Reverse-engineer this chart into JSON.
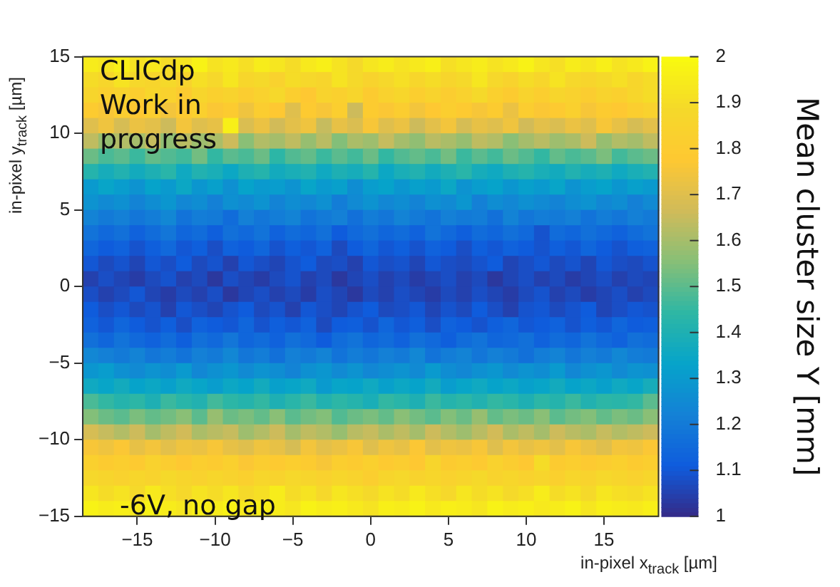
{
  "chart_data": {
    "type": "heatmap",
    "xlabel": "in-pixel x$_{track}$ [µm]",
    "ylabel": "in-pixel y$_{track}$ [µm]",
    "clabel": "Mean cluster size Y [mm]",
    "annotations": [
      "CLICdp",
      "Work in progress",
      "-6V, no gap"
    ],
    "xlim": [
      -18.5,
      18.5
    ],
    "ylim": [
      -15,
      15
    ],
    "xticks": [
      -15,
      -10,
      -5,
      0,
      5,
      10,
      15
    ],
    "yticks": [
      -15,
      -10,
      -5,
      0,
      5,
      10,
      15
    ],
    "clim": [
      1,
      2
    ],
    "cticks": [
      1,
      1.1,
      1.2,
      1.3,
      1.4,
      1.5,
      1.6,
      1.7,
      1.8,
      1.9,
      2
    ],
    "cells": [
      [
        1.95,
        1.93,
        1.96,
        1.92,
        1.94,
        1.9,
        1.93,
        1.97,
        1.92,
        1.94,
        1.91,
        1.95,
        1.93,
        1.9,
        1.94,
        1.96,
        1.92,
        1.89,
        1.93,
        1.95,
        1.92,
        1.94,
        1.96,
        1.91,
        1.93,
        1.95,
        1.92,
        1.94,
        1.97,
        1.93,
        1.91,
        1.95,
        1.93,
        1.96,
        1.92,
        1.94,
        1.97
      ],
      [
        1.9,
        1.87,
        1.92,
        1.88,
        1.86,
        1.89,
        1.85,
        1.91,
        1.88,
        1.93,
        1.87,
        1.89,
        1.84,
        1.9,
        1.88,
        1.86,
        1.92,
        1.89,
        1.85,
        1.88,
        1.91,
        1.87,
        1.9,
        1.86,
        1.89,
        1.93,
        1.88,
        1.85,
        1.9,
        1.87,
        1.92,
        1.88,
        1.86,
        1.89,
        1.91,
        1.87,
        1.9
      ],
      [
        1.86,
        1.83,
        1.85,
        1.82,
        1.87,
        1.84,
        1.8,
        1.86,
        1.83,
        1.85,
        1.81,
        1.84,
        1.88,
        1.82,
        1.78,
        1.85,
        1.83,
        1.86,
        1.8,
        1.84,
        1.87,
        1.82,
        1.85,
        1.81,
        1.84,
        1.89,
        1.83,
        1.8,
        1.85,
        1.82,
        1.86,
        1.84,
        1.81,
        1.85,
        1.83,
        1.87,
        1.9
      ],
      [
        1.8,
        1.76,
        1.81,
        1.78,
        1.82,
        1.75,
        1.79,
        1.83,
        1.77,
        1.8,
        1.74,
        1.81,
        1.78,
        1.7,
        1.79,
        1.76,
        1.82,
        1.66,
        1.8,
        1.77,
        1.81,
        1.75,
        1.78,
        1.82,
        1.79,
        1.76,
        1.8,
        1.73,
        1.81,
        1.77,
        1.79,
        1.83,
        1.76,
        1.8,
        1.78,
        1.82,
        1.84
      ],
      [
        1.7,
        1.74,
        1.68,
        1.73,
        1.71,
        1.66,
        1.75,
        1.7,
        1.72,
        1.96,
        1.69,
        1.73,
        1.67,
        1.71,
        1.74,
        1.65,
        1.72,
        1.69,
        1.76,
        1.7,
        1.73,
        1.66,
        1.71,
        1.75,
        1.68,
        1.72,
        1.7,
        1.74,
        1.67,
        1.71,
        1.69,
        1.73,
        1.7,
        1.76,
        1.72,
        1.68,
        1.71
      ],
      [
        1.64,
        1.58,
        1.62,
        1.6,
        1.65,
        1.57,
        1.63,
        1.59,
        1.61,
        1.66,
        1.56,
        1.62,
        1.6,
        1.64,
        1.58,
        1.63,
        1.55,
        1.61,
        1.59,
        1.65,
        1.6,
        1.57,
        1.63,
        1.61,
        1.58,
        1.64,
        1.62,
        1.56,
        1.6,
        1.63,
        1.59,
        1.61,
        1.66,
        1.58,
        1.62,
        1.6,
        1.64
      ],
      [
        1.52,
        1.48,
        1.5,
        1.46,
        1.51,
        1.49,
        1.47,
        1.53,
        1.45,
        1.5,
        1.48,
        1.52,
        1.44,
        1.49,
        1.51,
        1.46,
        1.5,
        1.47,
        1.52,
        1.45,
        1.49,
        1.51,
        1.48,
        1.53,
        1.46,
        1.5,
        1.47,
        1.52,
        1.49,
        1.45,
        1.51,
        1.48,
        1.5,
        1.54,
        1.47,
        1.5,
        1.52
      ],
      [
        1.42,
        1.38,
        1.41,
        1.37,
        1.4,
        1.43,
        1.36,
        1.41,
        1.39,
        1.35,
        1.4,
        1.42,
        1.37,
        1.39,
        1.41,
        1.36,
        1.4,
        1.38,
        1.42,
        1.35,
        1.39,
        1.41,
        1.37,
        1.4,
        1.43,
        1.38,
        1.36,
        1.4,
        1.42,
        1.39,
        1.37,
        1.41,
        1.38,
        1.4,
        1.36,
        1.39,
        1.41
      ],
      [
        1.3,
        1.34,
        1.31,
        1.28,
        1.33,
        1.3,
        1.35,
        1.29,
        1.32,
        1.27,
        1.33,
        1.3,
        1.31,
        1.28,
        1.34,
        1.3,
        1.32,
        1.26,
        1.31,
        1.33,
        1.29,
        1.32,
        1.3,
        1.35,
        1.28,
        1.31,
        1.33,
        1.29,
        1.32,
        1.3,
        1.34,
        1.28,
        1.31,
        1.33,
        1.29,
        1.32,
        1.3
      ],
      [
        1.28,
        1.25,
        1.27,
        1.23,
        1.26,
        1.29,
        1.24,
        1.26,
        1.22,
        1.27,
        1.25,
        1.28,
        1.23,
        1.26,
        1.24,
        1.27,
        1.21,
        1.25,
        1.28,
        1.24,
        1.26,
        1.23,
        1.27,
        1.25,
        1.29,
        1.22,
        1.26,
        1.24,
        1.27,
        1.25,
        1.23,
        1.26,
        1.28,
        1.24,
        1.26,
        1.22,
        1.25
      ],
      [
        1.23,
        1.2,
        1.22,
        1.19,
        1.21,
        1.24,
        1.18,
        1.21,
        1.2,
        1.16,
        1.22,
        1.19,
        1.21,
        1.23,
        1.18,
        1.2,
        1.22,
        1.17,
        1.21,
        1.19,
        1.23,
        1.2,
        1.18,
        1.22,
        1.2,
        1.21,
        1.17,
        1.23,
        1.19,
        1.21,
        1.2,
        1.22,
        1.18,
        1.21,
        1.19,
        1.22,
        1.2
      ],
      [
        1.18,
        1.15,
        1.17,
        1.13,
        1.16,
        1.19,
        1.14,
        1.16,
        1.12,
        1.17,
        1.15,
        1.18,
        1.13,
        1.16,
        1.14,
        1.17,
        1.11,
        1.15,
        1.17,
        1.14,
        1.16,
        1.13,
        1.18,
        1.15,
        1.12,
        1.16,
        1.14,
        1.17,
        1.15,
        1.09,
        1.16,
        1.14,
        1.17,
        1.15,
        1.13,
        1.16,
        1.18
      ],
      [
        1.14,
        1.11,
        1.13,
        1.09,
        1.12,
        1.15,
        1.1,
        1.12,
        1.08,
        1.13,
        1.11,
        1.14,
        1.09,
        1.12,
        1.1,
        1.13,
        1.07,
        1.11,
        1.14,
        1.1,
        1.12,
        1.09,
        1.13,
        1.11,
        1.08,
        1.12,
        1.1,
        1.13,
        1.11,
        1.09,
        1.12,
        1.1,
        1.14,
        1.11,
        1.09,
        1.12,
        1.13
      ],
      [
        1.1,
        1.07,
        1.09,
        1.06,
        1.1,
        1.08,
        1.11,
        1.07,
        1.09,
        1.05,
        1.1,
        1.08,
        1.06,
        1.09,
        1.11,
        1.07,
        1.08,
        1.05,
        1.1,
        1.08,
        1.09,
        1.06,
        1.1,
        1.08,
        1.07,
        1.09,
        1.11,
        1.06,
        1.08,
        1.1,
        1.07,
        1.09,
        1.06,
        1.1,
        1.08,
        1.07,
        1.09
      ],
      [
        1.05,
        1.08,
        1.06,
        1.04,
        1.07,
        1.09,
        1.05,
        1.07,
        1.03,
        1.08,
        1.06,
        1.04,
        1.07,
        1.09,
        1.05,
        1.07,
        1.03,
        1.06,
        1.08,
        1.05,
        1.07,
        1.04,
        1.06,
        1.08,
        1.05,
        1.07,
        1.03,
        1.06,
        1.08,
        1.05,
        1.07,
        1.04,
        1.06,
        1.08,
        1.05,
        1.07,
        1.06
      ],
      [
        1.08,
        1.05,
        1.07,
        1.1,
        1.06,
        1.04,
        1.07,
        1.05,
        1.08,
        1.03,
        1.06,
        1.08,
        1.05,
        1.07,
        1.04,
        1.08,
        1.06,
        1.03,
        1.07,
        1.05,
        1.08,
        1.06,
        1.04,
        1.07,
        1.05,
        1.08,
        1.06,
        1.04,
        1.07,
        1.09,
        1.05,
        1.07,
        1.04,
        1.06,
        1.08,
        1.05,
        1.07
      ],
      [
        1.11,
        1.08,
        1.1,
        1.07,
        1.09,
        1.05,
        1.1,
        1.08,
        1.06,
        1.09,
        1.11,
        1.07,
        1.09,
        1.05,
        1.1,
        1.08,
        1.06,
        1.09,
        1.11,
        1.07,
        1.08,
        1.1,
        1.06,
        1.09,
        1.07,
        1.11,
        1.08,
        1.05,
        1.09,
        1.1,
        1.07,
        1.09,
        1.11,
        1.06,
        1.08,
        1.1,
        1.09
      ],
      [
        1.13,
        1.1,
        1.14,
        1.11,
        1.09,
        1.12,
        1.08,
        1.13,
        1.11,
        1.1,
        1.14,
        1.09,
        1.12,
        1.1,
        1.13,
        1.07,
        1.11,
        1.12,
        1.09,
        1.14,
        1.1,
        1.12,
        1.08,
        1.13,
        1.11,
        1.09,
        1.12,
        1.14,
        1.1,
        1.11,
        1.13,
        1.09,
        1.12,
        1.1,
        1.14,
        1.11,
        1.12
      ],
      [
        1.17,
        1.14,
        1.18,
        1.15,
        1.13,
        1.16,
        1.12,
        1.17,
        1.15,
        1.19,
        1.14,
        1.16,
        1.13,
        1.17,
        1.15,
        1.11,
        1.16,
        1.18,
        1.14,
        1.16,
        1.13,
        1.17,
        1.15,
        1.12,
        1.16,
        1.18,
        1.14,
        1.15,
        1.17,
        1.13,
        1.16,
        1.14,
        1.18,
        1.15,
        1.13,
        1.17,
        1.16
      ],
      [
        1.24,
        1.22,
        1.2,
        1.23,
        1.19,
        1.21,
        1.18,
        1.22,
        1.2,
        1.24,
        1.19,
        1.21,
        1.17,
        1.22,
        1.2,
        1.23,
        1.18,
        1.21,
        1.19,
        1.22,
        1.2,
        1.24,
        1.18,
        1.21,
        1.23,
        1.19,
        1.22,
        1.2,
        1.17,
        1.21,
        1.23,
        1.19,
        1.22,
        1.2,
        1.24,
        1.21,
        1.2
      ],
      [
        1.29,
        1.31,
        1.27,
        1.25,
        1.28,
        1.26,
        1.3,
        1.24,
        1.27,
        1.29,
        1.25,
        1.28,
        1.26,
        1.23,
        1.27,
        1.29,
        1.25,
        1.28,
        1.24,
        1.26,
        1.28,
        1.25,
        1.3,
        1.26,
        1.24,
        1.27,
        1.29,
        1.25,
        1.28,
        1.26,
        1.3,
        1.24,
        1.27,
        1.29,
        1.25,
        1.28,
        1.27
      ],
      [
        1.36,
        1.34,
        1.37,
        1.33,
        1.35,
        1.32,
        1.36,
        1.34,
        1.31,
        1.35,
        1.33,
        1.37,
        1.32,
        1.34,
        1.36,
        1.3,
        1.34,
        1.33,
        1.36,
        1.32,
        1.35,
        1.33,
        1.37,
        1.31,
        1.34,
        1.36,
        1.33,
        1.35,
        1.32,
        1.34,
        1.37,
        1.33,
        1.35,
        1.32,
        1.36,
        1.34,
        1.38
      ],
      [
        1.48,
        1.45,
        1.42,
        1.44,
        1.4,
        1.46,
        1.43,
        1.41,
        1.47,
        1.44,
        1.42,
        1.45,
        1.4,
        1.43,
        1.46,
        1.41,
        1.44,
        1.42,
        1.39,
        1.45,
        1.43,
        1.4,
        1.46,
        1.42,
        1.44,
        1.41,
        1.45,
        1.43,
        1.4,
        1.44,
        1.42,
        1.46,
        1.41,
        1.44,
        1.43,
        1.45,
        1.5
      ],
      [
        1.55,
        1.52,
        1.5,
        1.54,
        1.51,
        1.53,
        1.56,
        1.5,
        1.58,
        1.52,
        1.54,
        1.51,
        1.56,
        1.5,
        1.53,
        1.55,
        1.49,
        1.52,
        1.54,
        1.51,
        1.56,
        1.53,
        1.5,
        1.55,
        1.52,
        1.58,
        1.51,
        1.54,
        1.52,
        1.56,
        1.5,
        1.53,
        1.55,
        1.51,
        1.54,
        1.52,
        1.56
      ],
      [
        1.68,
        1.65,
        1.62,
        1.66,
        1.6,
        1.64,
        1.67,
        1.61,
        1.63,
        1.65,
        1.59,
        1.62,
        1.66,
        1.6,
        1.64,
        1.62,
        1.58,
        1.63,
        1.65,
        1.61,
        1.64,
        1.6,
        1.66,
        1.62,
        1.59,
        1.63,
        1.67,
        1.61,
        1.64,
        1.6,
        1.66,
        1.63,
        1.61,
        1.65,
        1.62,
        1.64,
        1.66
      ],
      [
        1.76,
        1.74,
        1.77,
        1.72,
        1.75,
        1.71,
        1.74,
        1.73,
        1.76,
        1.72,
        1.7,
        1.74,
        1.72,
        1.68,
        1.75,
        1.71,
        1.73,
        1.76,
        1.7,
        1.74,
        1.72,
        1.77,
        1.71,
        1.74,
        1.73,
        1.76,
        1.7,
        1.75,
        1.72,
        1.74,
        1.71,
        1.76,
        1.73,
        1.7,
        1.75,
        1.74,
        1.77
      ],
      [
        1.83,
        1.8,
        1.82,
        1.79,
        1.84,
        1.81,
        1.78,
        1.82,
        1.8,
        1.83,
        1.77,
        1.81,
        1.79,
        1.82,
        1.8,
        1.76,
        1.82,
        1.8,
        1.83,
        1.79,
        1.81,
        1.78,
        1.86,
        1.8,
        1.82,
        1.79,
        1.84,
        1.81,
        1.78,
        1.9,
        1.8,
        1.82,
        1.79,
        1.81,
        1.83,
        1.8,
        1.82
      ],
      [
        1.88,
        1.86,
        1.84,
        1.87,
        1.85,
        1.89,
        1.86,
        1.84,
        1.87,
        1.85,
        1.83,
        1.87,
        1.85,
        1.88,
        1.86,
        1.84,
        1.87,
        1.85,
        1.82,
        1.86,
        1.88,
        1.85,
        1.87,
        1.84,
        1.86,
        1.89,
        1.85,
        1.87,
        1.84,
        1.86,
        1.83,
        1.87,
        1.85,
        1.88,
        1.86,
        1.84,
        1.87
      ],
      [
        1.93,
        1.9,
        1.92,
        1.89,
        1.94,
        1.91,
        1.88,
        1.92,
        1.9,
        1.93,
        1.89,
        1.91,
        1.95,
        1.9,
        1.92,
        1.88,
        1.93,
        1.91,
        1.89,
        1.92,
        1.9,
        1.94,
        1.91,
        1.88,
        1.93,
        1.9,
        1.92,
        1.89,
        1.91,
        1.95,
        1.9,
        1.92,
        1.89,
        1.93,
        1.91,
        1.9,
        1.92
      ],
      [
        1.97,
        1.95,
        1.96,
        1.94,
        1.97,
        1.95,
        1.93,
        1.96,
        1.95,
        1.97,
        1.94,
        1.96,
        1.95,
        1.93,
        1.97,
        1.95,
        1.96,
        1.94,
        1.92,
        1.96,
        1.95,
        1.97,
        1.94,
        1.96,
        1.95,
        1.93,
        1.97,
        1.95,
        1.96,
        1.94,
        1.95,
        1.97,
        1.93,
        1.96,
        1.95,
        1.94,
        1.96
      ]
    ]
  }
}
